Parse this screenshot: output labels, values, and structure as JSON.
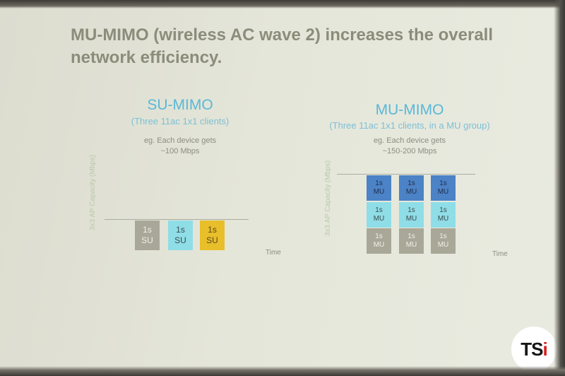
{
  "slide": {
    "title": "MU-MIMO (wireless AC wave 2) increases the overall network efficiency."
  },
  "su_mimo": {
    "heading": "SU-MIMO",
    "subheading": "(Three 11ac 1x1 clients)",
    "note_line1": "eg. Each device gets",
    "note_line2": "~100 Mbps",
    "y_axis_label": "3x3 AP Capacity (Mbps)",
    "x_axis_label": "Time",
    "blocks": [
      {
        "line1": "1s",
        "line2": "SU",
        "color": "#a9a797"
      },
      {
        "line1": "1s",
        "line2": "SU",
        "color": "#8fdde6"
      },
      {
        "line1": "1s",
        "line2": "SU",
        "color": "#e8be2a"
      }
    ]
  },
  "mu_mimo": {
    "heading": "MU-MIMO",
    "subheading": "(Three 11ac 1x1 clients, in a MU group)",
    "note_line1": "eg. Each device gets",
    "note_line2": "~150-200 Mbps",
    "y_axis_label": "3x3 AP Capacity (Mbps)",
    "x_axis_label": "Time",
    "block_line1": "1s",
    "block_line2": "MU",
    "layer_colors": [
      "#4c82c6",
      "#8fdde6",
      "#a9a797"
    ],
    "columns": 3
  },
  "logo": {
    "text_main": "TS",
    "text_accent": "i"
  }
}
